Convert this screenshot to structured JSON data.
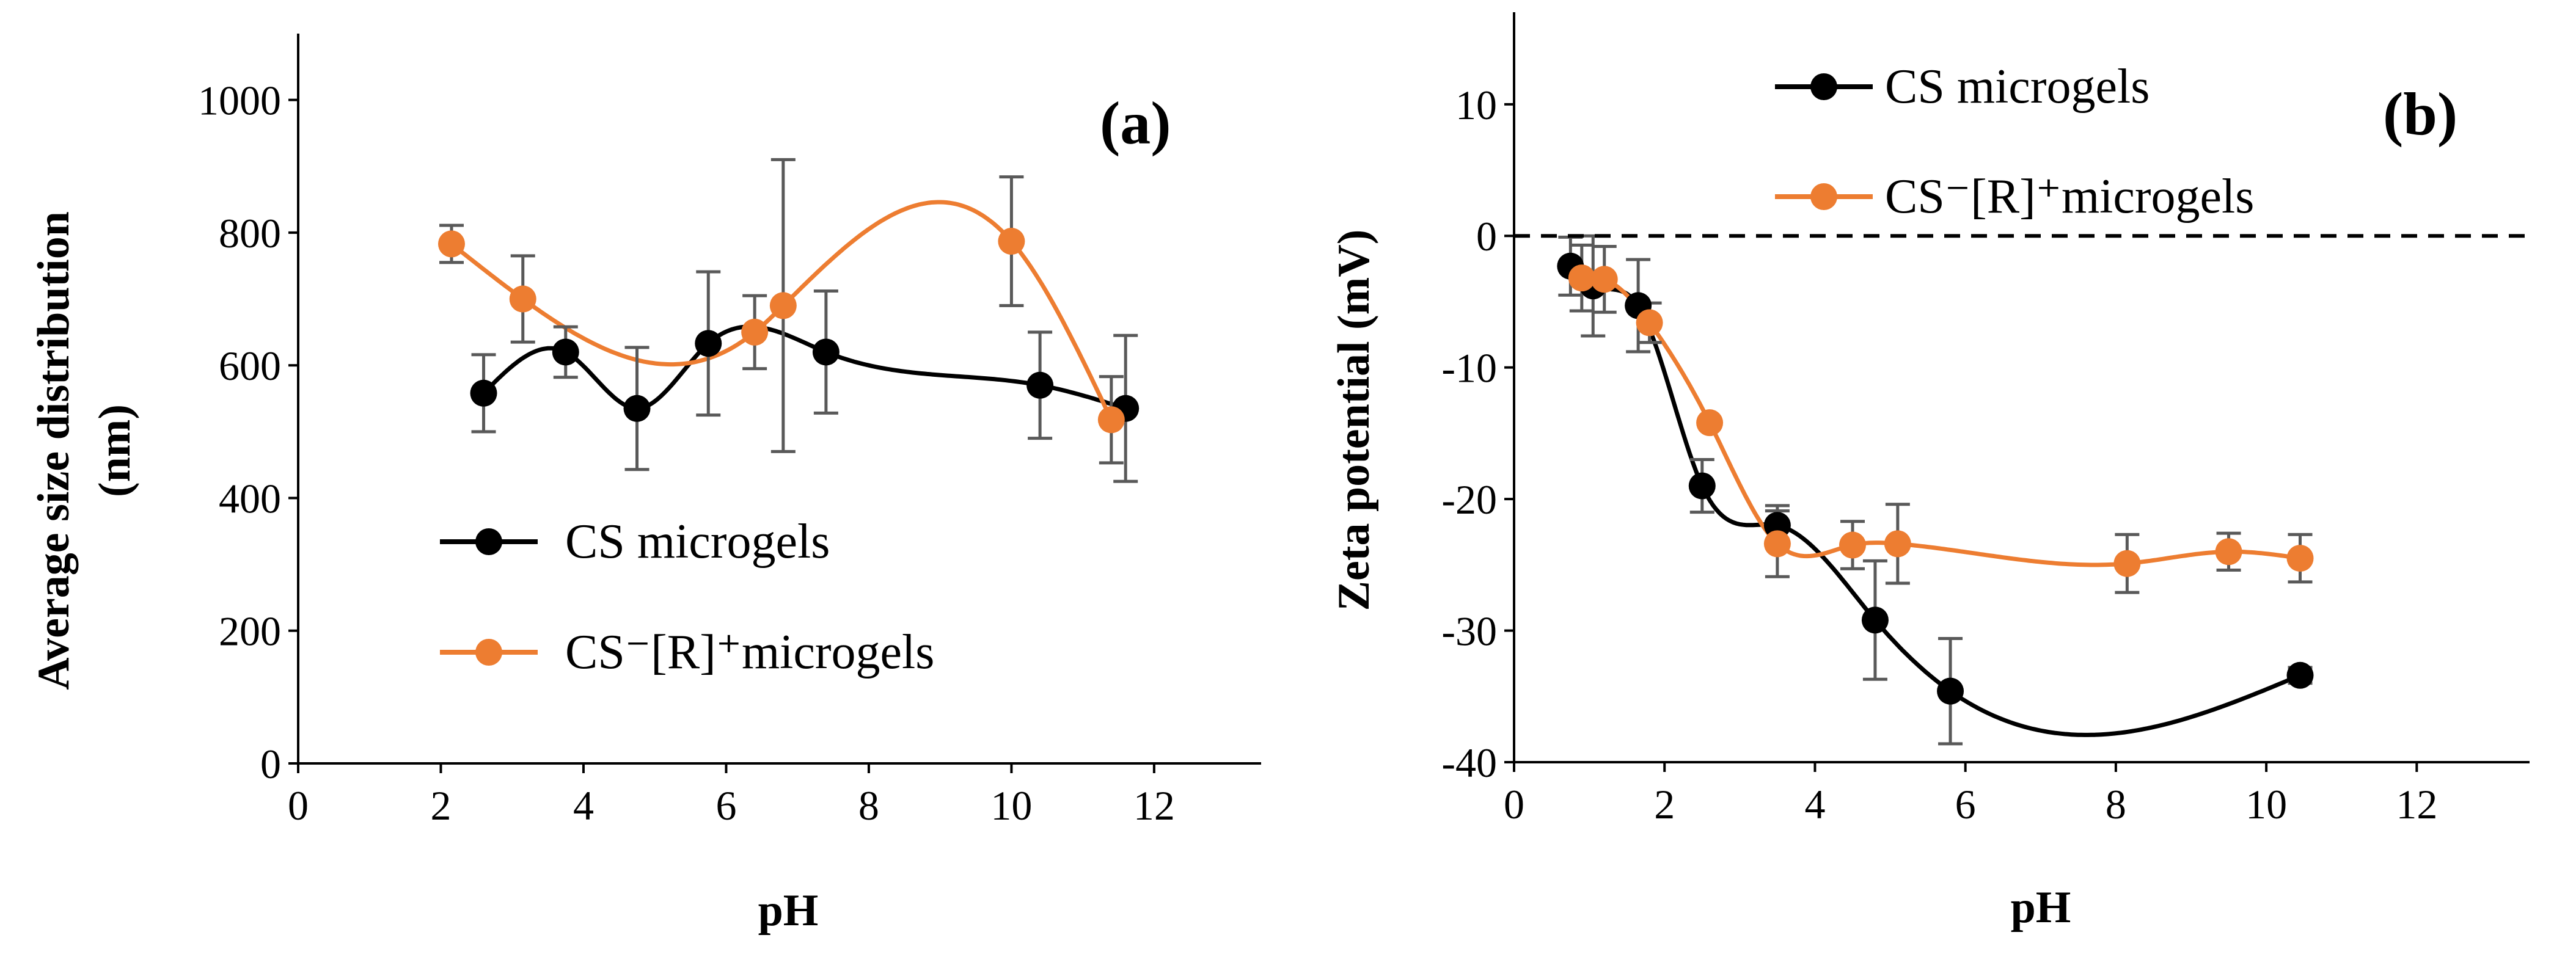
{
  "chart_data": [
    {
      "type": "scatter",
      "panel_label": "(a)",
      "xlabel": "pH",
      "ylabel_line1": "Average size distribution",
      "ylabel_line2": "(nm)",
      "xlim": [
        0,
        13.5
      ],
      "ylim": [
        0,
        1100
      ],
      "xticks": [
        0,
        2,
        4,
        6,
        8,
        10,
        12
      ],
      "yticks": [
        0,
        200,
        400,
        600,
        800,
        1000
      ],
      "xtick_labels": [
        "0",
        "2",
        "4",
        "6",
        "8",
        "10",
        "12"
      ],
      "ytick_labels": [
        "0",
        "200",
        "400",
        "600",
        "800",
        "1000"
      ],
      "grid": false,
      "legend_position": "lower-left",
      "series": [
        {
          "name": "CS microgels",
          "color": "#000000",
          "x": [
            2.6,
            3.75,
            4.75,
            5.75,
            7.4,
            10.4,
            11.6
          ],
          "y": [
            558,
            620,
            535,
            633,
            620,
            570,
            535
          ],
          "err": [
            58,
            38,
            92,
            108,
            92,
            80,
            110
          ]
        },
        {
          "name": "CS⁻[R]⁺microgels",
          "color": "#ED7D31",
          "x": [
            2.15,
            3.15,
            6.4,
            6.8,
            10.0,
            11.4
          ],
          "y": [
            783,
            700,
            650,
            690,
            787,
            518
          ],
          "err": [
            28,
            65,
            55,
            220,
            97,
            65
          ]
        }
      ]
    },
    {
      "type": "scatter",
      "panel_label": "(b)",
      "xlabel": "pH",
      "ylabel": "Zeta potential (mV)",
      "xlim": [
        0,
        13.5
      ],
      "ylim": [
        -40,
        17
      ],
      "xticks": [
        0,
        2,
        4,
        6,
        8,
        10,
        12
      ],
      "yticks": [
        -40,
        -30,
        -20,
        -10,
        0,
        10
      ],
      "xtick_labels": [
        "0",
        "2",
        "4",
        "6",
        "8",
        "10",
        "12"
      ],
      "ytick_labels": [
        "-40",
        "-30",
        "-20",
        "-10",
        "0",
        "10"
      ],
      "reference_line_y": 0,
      "grid": false,
      "legend_position": "top-left",
      "series": [
        {
          "name": "CS microgels",
          "color": "#000000",
          "x": [
            0.75,
            1.05,
            1.65,
            2.5,
            3.5,
            4.8,
            5.8,
            10.45
          ],
          "y": [
            -2.3,
            -3.8,
            -5.3,
            -19.0,
            -22.0,
            -29.2,
            -34.6,
            -33.4
          ],
          "err": [
            2.2,
            3.8,
            3.5,
            2.0,
            1.5,
            4.5,
            4.0,
            0.6
          ]
        },
        {
          "name": "CS⁻[R]⁺microgels",
          "color": "#ED7D31",
          "x": [
            0.9,
            1.2,
            1.8,
            2.6,
            3.5,
            4.5,
            5.1,
            8.15,
            9.5,
            10.45
          ],
          "y": [
            -3.2,
            -3.3,
            -6.6,
            -14.2,
            -23.4,
            -23.5,
            -23.4,
            -24.9,
            -24.0,
            -24.5
          ],
          "err": [
            2.5,
            2.5,
            1.5,
            0.0,
            2.5,
            1.8,
            3.0,
            2.2,
            1.4,
            1.8
          ]
        }
      ]
    }
  ]
}
